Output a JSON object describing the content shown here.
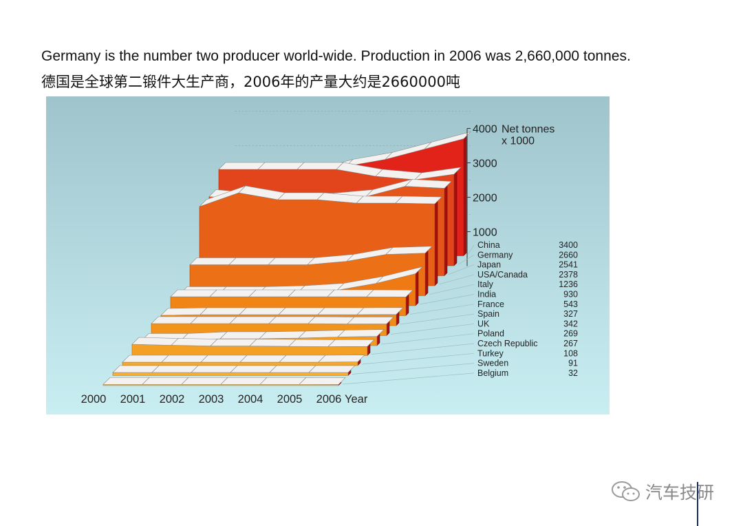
{
  "captions": {
    "english": "Germany is the number two producer world-wide. Production in 2006 was 2,660,000 tonnes.",
    "chinese": "德国是全球第二锻件大生产商，2006年的产量大约是2660000吨"
  },
  "watermark": {
    "text": "汽车技研",
    "icon": "wechat-icon"
  },
  "chart_data": {
    "type": "area",
    "variant": "3d-stacked-ribbons",
    "z_axis_label": [
      "Net tonnes",
      "x 1000"
    ],
    "z_ticks": [
      "1000",
      "2000",
      "3000",
      "4000"
    ],
    "z_range": [
      0,
      4000
    ],
    "x_label": "Year",
    "x": [
      "2000",
      "2001",
      "2002",
      "2003",
      "2004",
      "2005",
      "2006"
    ],
    "legend_placement": "right",
    "series": [
      {
        "name": "China",
        "value_2006": "3400",
        "values": [
          1800,
          2100,
          2300,
          2600,
          2800,
          3100,
          3400
        ],
        "color": "#e2231a"
      },
      {
        "name": "Germany",
        "value_2006": "2660",
        "values": [
          2800,
          2800,
          2800,
          2800,
          2600,
          2500,
          2660
        ],
        "color": "#e2441b"
      },
      {
        "name": "Japan",
        "value_2006": "2541",
        "values": [
          2300,
          2200,
          2200,
          2200,
          2300,
          2600,
          2541
        ],
        "color": "#e5551a"
      },
      {
        "name": "USA/Canada",
        "value_2006": "2378",
        "values": [
          2300,
          2700,
          2500,
          2500,
          2400,
          2400,
          2378
        ],
        "color": "#e85f18"
      },
      {
        "name": "Italy",
        "value_2006": "1236",
        "values": [
          900,
          900,
          900,
          900,
          1000,
          1200,
          1236
        ],
        "color": "#ec7016"
      },
      {
        "name": "India",
        "value_2006": "930",
        "values": [
          350,
          350,
          350,
          380,
          450,
          650,
          930
        ],
        "color": "#ef7a14"
      },
      {
        "name": "France",
        "value_2006": "543",
        "values": [
          550,
          550,
          550,
          550,
          550,
          550,
          543
        ],
        "color": "#f08515"
      },
      {
        "name": "Spain",
        "value_2006": "327",
        "values": [
          300,
          320,
          320,
          320,
          320,
          320,
          327
        ],
        "color": "#f18c18"
      },
      {
        "name": "UK",
        "value_2006": "342",
        "values": [
          350,
          350,
          350,
          350,
          350,
          340,
          342
        ],
        "color": "#f2941c"
      },
      {
        "name": "Poland",
        "value_2006": "269",
        "values": [
          150,
          150,
          200,
          200,
          220,
          250,
          269
        ],
        "color": "#f39a20"
      },
      {
        "name": "Czech Republic",
        "value_2006": "267",
        "values": [
          330,
          300,
          280,
          280,
          270,
          260,
          267
        ],
        "color": "#f4a024"
      },
      {
        "name": "Turkey",
        "value_2006": "108",
        "values": [
          100,
          100,
          100,
          100,
          100,
          100,
          108
        ],
        "color": "#f5a82c"
      },
      {
        "name": "Sweden",
        "value_2006": "91",
        "values": [
          90,
          90,
          90,
          90,
          90,
          90,
          91
        ],
        "color": "#f6ae34"
      },
      {
        "name": "Belgium",
        "value_2006": "32",
        "values": [
          35,
          35,
          35,
          35,
          35,
          35,
          32
        ],
        "color": "#f7b43c"
      }
    ]
  }
}
